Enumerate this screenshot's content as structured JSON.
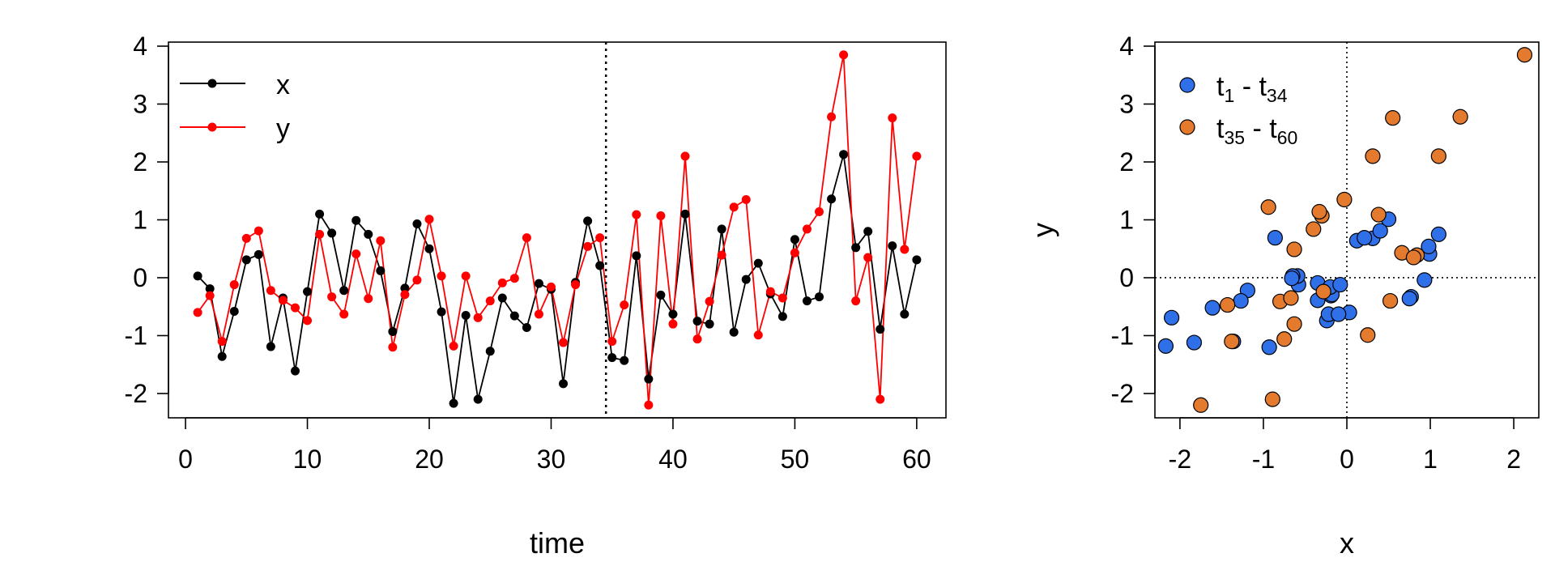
{
  "colors": {
    "x_line": "#000000",
    "y_line": "#ff0000",
    "early": "#2f6fe8",
    "late": "#e37a2e",
    "outline": "#000000",
    "ref_line": "#000000"
  },
  "chart_data": [
    {
      "type": "line",
      "xlabel": "time",
      "ylabel": "",
      "xlim": [
        -1.4,
        62.4
      ],
      "ylim": [
        -2.42,
        4.07
      ],
      "xticks": [
        0,
        10,
        20,
        30,
        40,
        50,
        60
      ],
      "xtick_labels": [
        "0",
        "10",
        "20",
        "30",
        "40",
        "50",
        "60"
      ],
      "yticks": [
        -2,
        -1,
        0,
        1,
        2,
        3,
        4
      ],
      "ytick_labels": [
        "-2",
        "-1",
        "0",
        "1",
        "2",
        "3",
        "4"
      ],
      "legend_position": "top-left",
      "vline_x": 34.5,
      "x": [
        1,
        2,
        3,
        4,
        5,
        6,
        7,
        8,
        9,
        10,
        11,
        12,
        13,
        14,
        15,
        16,
        17,
        18,
        19,
        20,
        21,
        22,
        23,
        24,
        25,
        26,
        27,
        28,
        29,
        30,
        31,
        32,
        33,
        34,
        35,
        36,
        37,
        38,
        39,
        40,
        41,
        42,
        43,
        44,
        45,
        46,
        47,
        48,
        49,
        50,
        51,
        52,
        53,
        54,
        55,
        56,
        57,
        58,
        59,
        60
      ],
      "series": [
        {
          "name": "x",
          "color": "#000000",
          "values": [
            0.03,
            -0.19,
            -1.36,
            -0.58,
            0.31,
            0.4,
            -1.19,
            -0.35,
            -1.61,
            -0.24,
            1.1,
            0.77,
            -0.22,
            0.99,
            0.75,
            0.12,
            -0.93,
            -0.18,
            0.93,
            0.5,
            -0.59,
            -2.17,
            -0.65,
            -2.1,
            -1.27,
            -0.35,
            -0.66,
            -0.86,
            -0.1,
            -0.2,
            -1.83,
            -0.08,
            0.98,
            0.21,
            -1.38,
            -1.43,
            0.38,
            -1.75,
            -0.3,
            -0.63,
            1.1,
            -0.75,
            -0.8,
            0.84,
            -0.94,
            -0.03,
            0.25,
            -0.28,
            -0.67,
            0.66,
            -0.4,
            -0.33,
            1.36,
            2.13,
            0.52,
            0.8,
            -0.89,
            0.55,
            -0.63,
            0.31
          ]
        },
        {
          "name": "y",
          "color": "#ff0000",
          "values": [
            -0.6,
            -0.31,
            -1.1,
            -0.12,
            0.68,
            0.81,
            -0.22,
            -0.39,
            -0.52,
            -0.74,
            0.75,
            -0.33,
            -0.63,
            0.41,
            -0.36,
            0.64,
            -1.2,
            -0.29,
            -0.04,
            1.01,
            0.03,
            -1.18,
            0.03,
            -0.69,
            -0.4,
            -0.09,
            -0.01,
            0.69,
            -0.63,
            -0.16,
            -1.12,
            -0.12,
            0.54,
            0.69,
            -1.1,
            -0.47,
            1.09,
            -2.2,
            1.07,
            -0.8,
            2.1,
            -1.06,
            -0.41,
            0.39,
            1.22,
            1.35,
            -0.99,
            -0.24,
            -0.35,
            0.43,
            0.84,
            1.14,
            2.78,
            3.85,
            -0.4,
            0.35,
            -2.1,
            2.76,
            0.49,
            2.1
          ]
        }
      ]
    },
    {
      "type": "scatter",
      "xlabel": "x",
      "ylabel": "y",
      "xlim": [
        -2.3,
        2.3
      ],
      "ylim": [
        -2.42,
        4.07
      ],
      "xticks": [
        -2,
        -1,
        0,
        1,
        2
      ],
      "xtick_labels": [
        "-2",
        "-1",
        "0",
        "1",
        "2"
      ],
      "yticks": [
        -2,
        -1,
        0,
        1,
        2,
        3,
        4
      ],
      "ytick_labels": [
        "-2",
        "-1",
        "0",
        "1",
        "2",
        "3",
        "4"
      ],
      "legend_position": "top-left",
      "hline_y": 0,
      "vline_x": 0,
      "groups": [
        {
          "name": "t1 - t34",
          "label_main": "t",
          "label_sub1": "1",
          "label_sep": " - t",
          "label_sub2": "34",
          "color": "#2f6fe8",
          "x": [
            0.03,
            -0.19,
            -1.36,
            -0.58,
            0.31,
            0.4,
            -1.19,
            -0.35,
            -1.61,
            -0.24,
            1.1,
            0.77,
            -0.22,
            0.99,
            0.75,
            0.12,
            -0.93,
            -0.18,
            0.93,
            0.5,
            -0.59,
            -2.17,
            -0.65,
            -2.1,
            -1.27,
            -0.35,
            -0.66,
            -0.86,
            -0.1,
            -0.2,
            -1.83,
            -0.08,
            0.98,
            0.21
          ],
          "y": [
            -0.6,
            -0.31,
            -1.1,
            -0.12,
            0.68,
            0.81,
            -0.22,
            -0.39,
            -0.52,
            -0.74,
            0.75,
            -0.33,
            -0.63,
            0.41,
            -0.36,
            0.64,
            -1.2,
            -0.29,
            -0.04,
            1.01,
            0.03,
            -1.18,
            0.03,
            -0.69,
            -0.4,
            -0.09,
            -0.01,
            0.69,
            -0.63,
            -0.16,
            -1.12,
            -0.12,
            0.54,
            0.69
          ]
        },
        {
          "name": "t35 - t60",
          "label_main": "t",
          "label_sub1": "35",
          "label_sep": " - t",
          "label_sub2": "60",
          "color": "#e37a2e",
          "x": [
            -1.38,
            -1.43,
            0.38,
            -1.75,
            -0.3,
            -0.63,
            1.1,
            -0.75,
            -0.8,
            0.84,
            -0.94,
            -0.03,
            0.25,
            -0.28,
            -0.67,
            0.66,
            -0.4,
            -0.33,
            1.36,
            2.13,
            0.52,
            0.8,
            -0.89,
            0.55,
            -0.63,
            0.31
          ],
          "y": [
            -1.1,
            -0.47,
            1.09,
            -2.2,
            1.07,
            -0.8,
            2.1,
            -1.06,
            -0.41,
            0.39,
            1.22,
            1.35,
            -0.99,
            -0.24,
            -0.35,
            0.43,
            0.84,
            1.14,
            2.78,
            3.85,
            -0.4,
            0.35,
            -2.1,
            2.76,
            0.49,
            2.1
          ]
        }
      ]
    }
  ]
}
